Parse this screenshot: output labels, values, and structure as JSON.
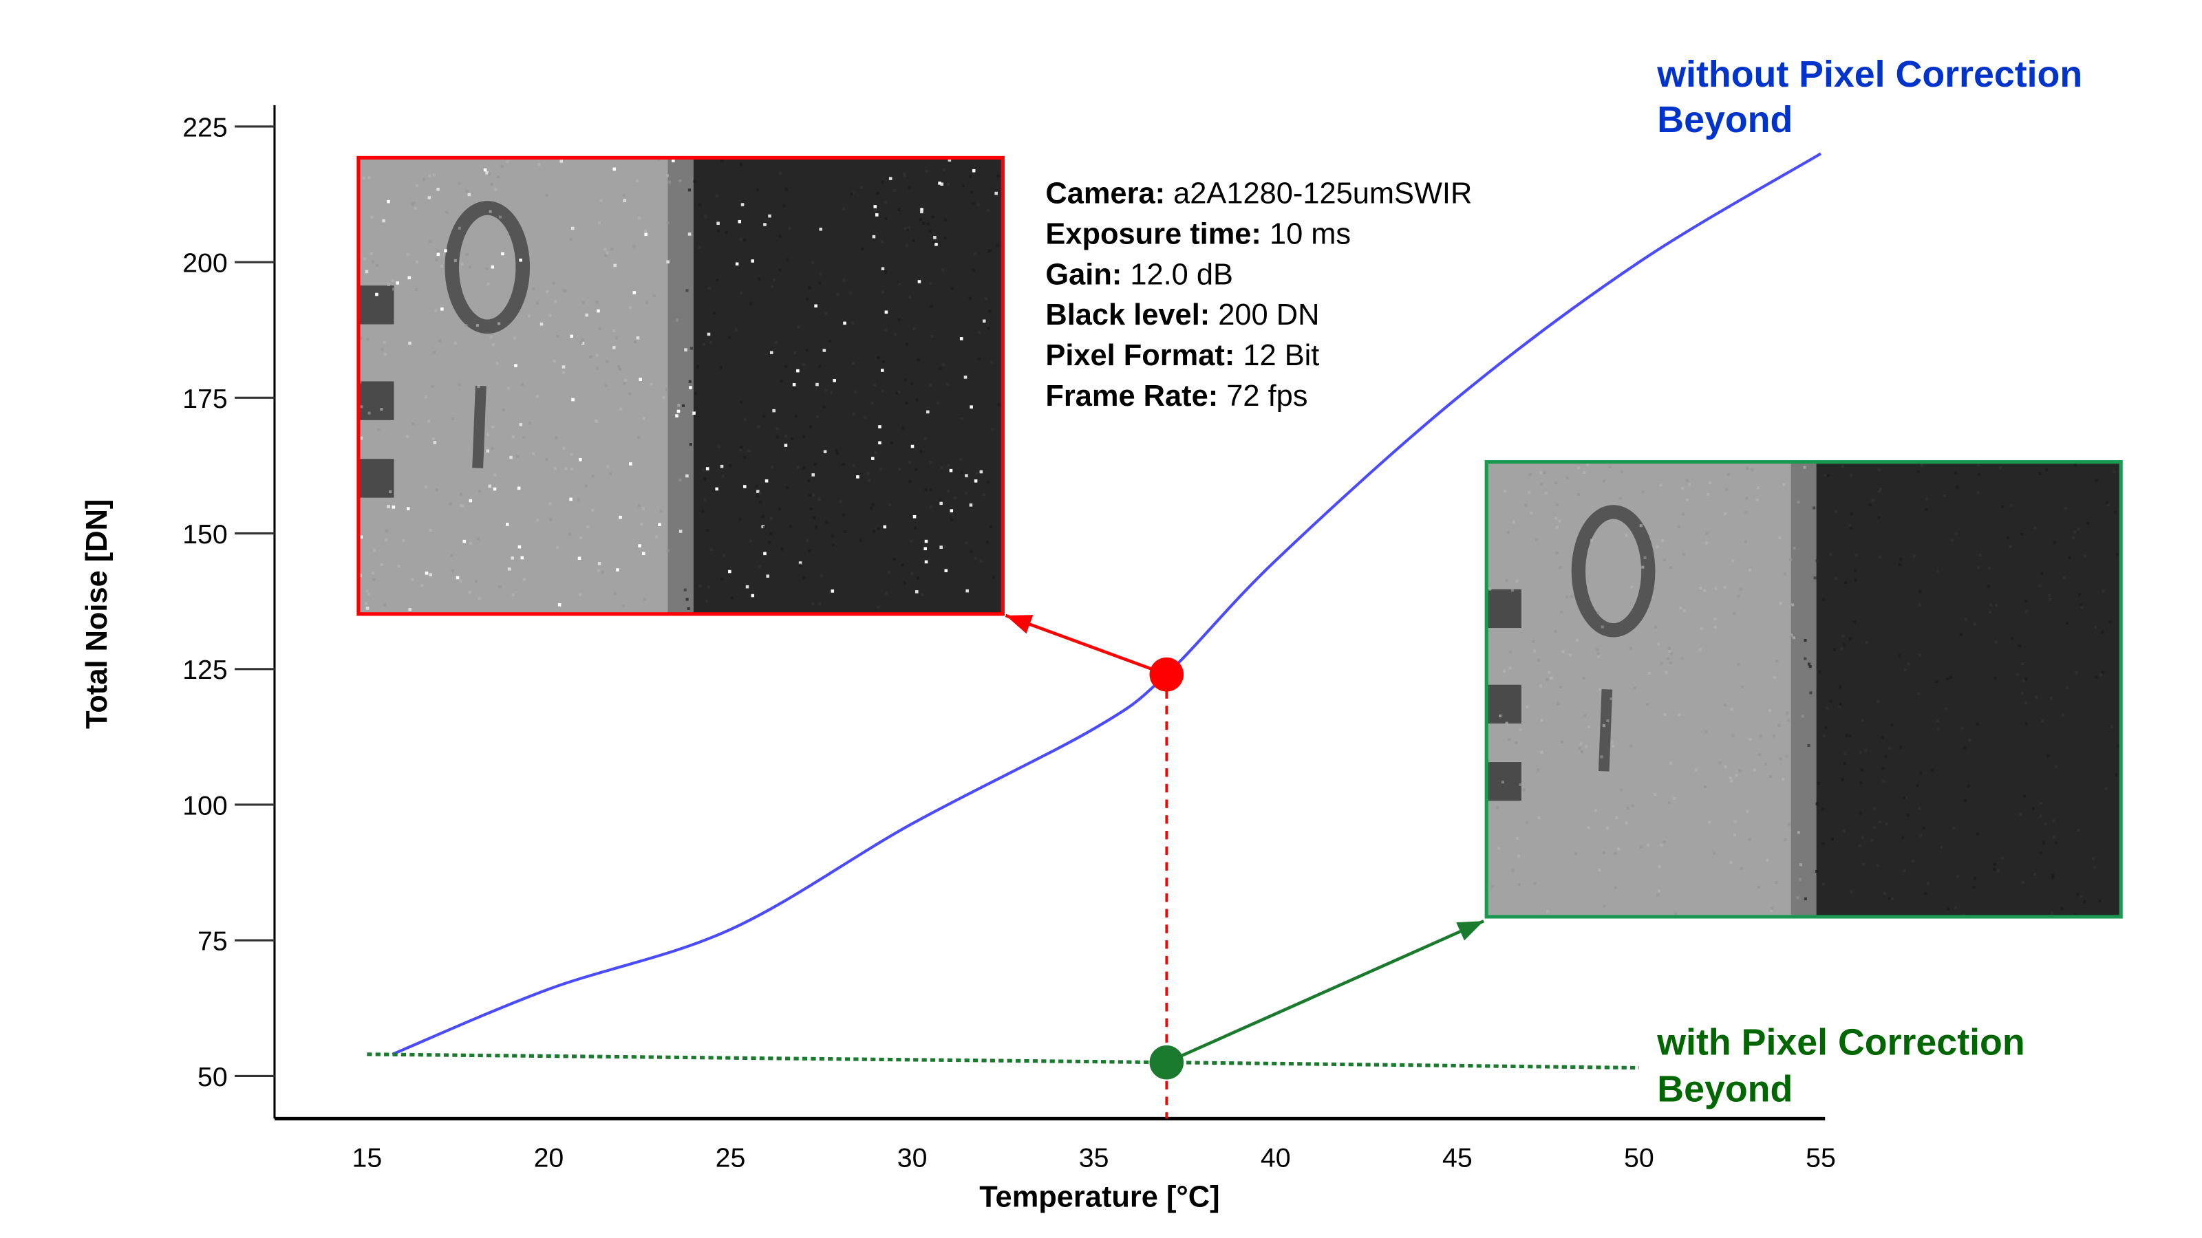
{
  "chart_data": {
    "type": "line",
    "xlabel": "Temperature [°C]",
    "ylabel": "Total Noise [DN]",
    "xlim": [
      15,
      55
    ],
    "ylim": [
      50,
      225
    ],
    "x_ticks": [
      15,
      20,
      25,
      30,
      35,
      40,
      45,
      50,
      55
    ],
    "y_ticks": [
      50,
      75,
      100,
      125,
      150,
      175,
      200,
      225
    ],
    "grid": false,
    "series": [
      {
        "name": "without Pixel Correction Beyond",
        "color": "#0033cc",
        "line_color": "#4a4aff",
        "style": "solid",
        "points": [
          [
            15.7,
            54
          ],
          [
            20,
            66
          ],
          [
            25,
            77
          ],
          [
            30,
            96.5
          ],
          [
            35,
            114
          ],
          [
            37,
            124
          ],
          [
            40,
            145
          ],
          [
            45,
            175
          ],
          [
            50,
            200
          ],
          [
            55,
            220
          ]
        ]
      },
      {
        "name": "with Pixel Correction Beyond",
        "color": "#006600",
        "line_color": "#1a7a2e",
        "style": "dotted",
        "points": [
          [
            15,
            54
          ],
          [
            37,
            52.5
          ],
          [
            50,
            51.5
          ]
        ]
      }
    ],
    "markers": [
      {
        "x": 37,
        "y": 124,
        "color": "#ff0000",
        "series": "without Pixel Correction Beyond"
      },
      {
        "x": 37,
        "y": 52.5,
        "color": "#1a7a2e",
        "series": "with Pixel Correction Beyond"
      }
    ],
    "vertical_reference": {
      "x": 37,
      "color": "#ff0000",
      "style": "dashed"
    },
    "insets": [
      {
        "description_key": "without-correction-image",
        "border_color": "#ff0000",
        "hot_pixels": true
      },
      {
        "description_key": "with-correction-image",
        "border_color": "#1a9a50",
        "hot_pixels": false
      }
    ],
    "annotation": [
      {
        "label": "Camera:",
        "value": " a2A1280-125umSWIR"
      },
      {
        "label": "Exposure time:",
        "value": " 10 ms"
      },
      {
        "label": "Gain:",
        "value": " 12.0 dB"
      },
      {
        "label": "Black level:",
        "value": " 200 DN"
      },
      {
        "label": "Pixel Format:",
        "value": " 12 Bit"
      },
      {
        "label": "Frame Rate:",
        "value": " 72 fps"
      }
    ],
    "series_labels": {
      "without": [
        "without Pixel Correction",
        "Beyond"
      ],
      "with": [
        "with Pixel Correction",
        "Beyond"
      ]
    }
  }
}
